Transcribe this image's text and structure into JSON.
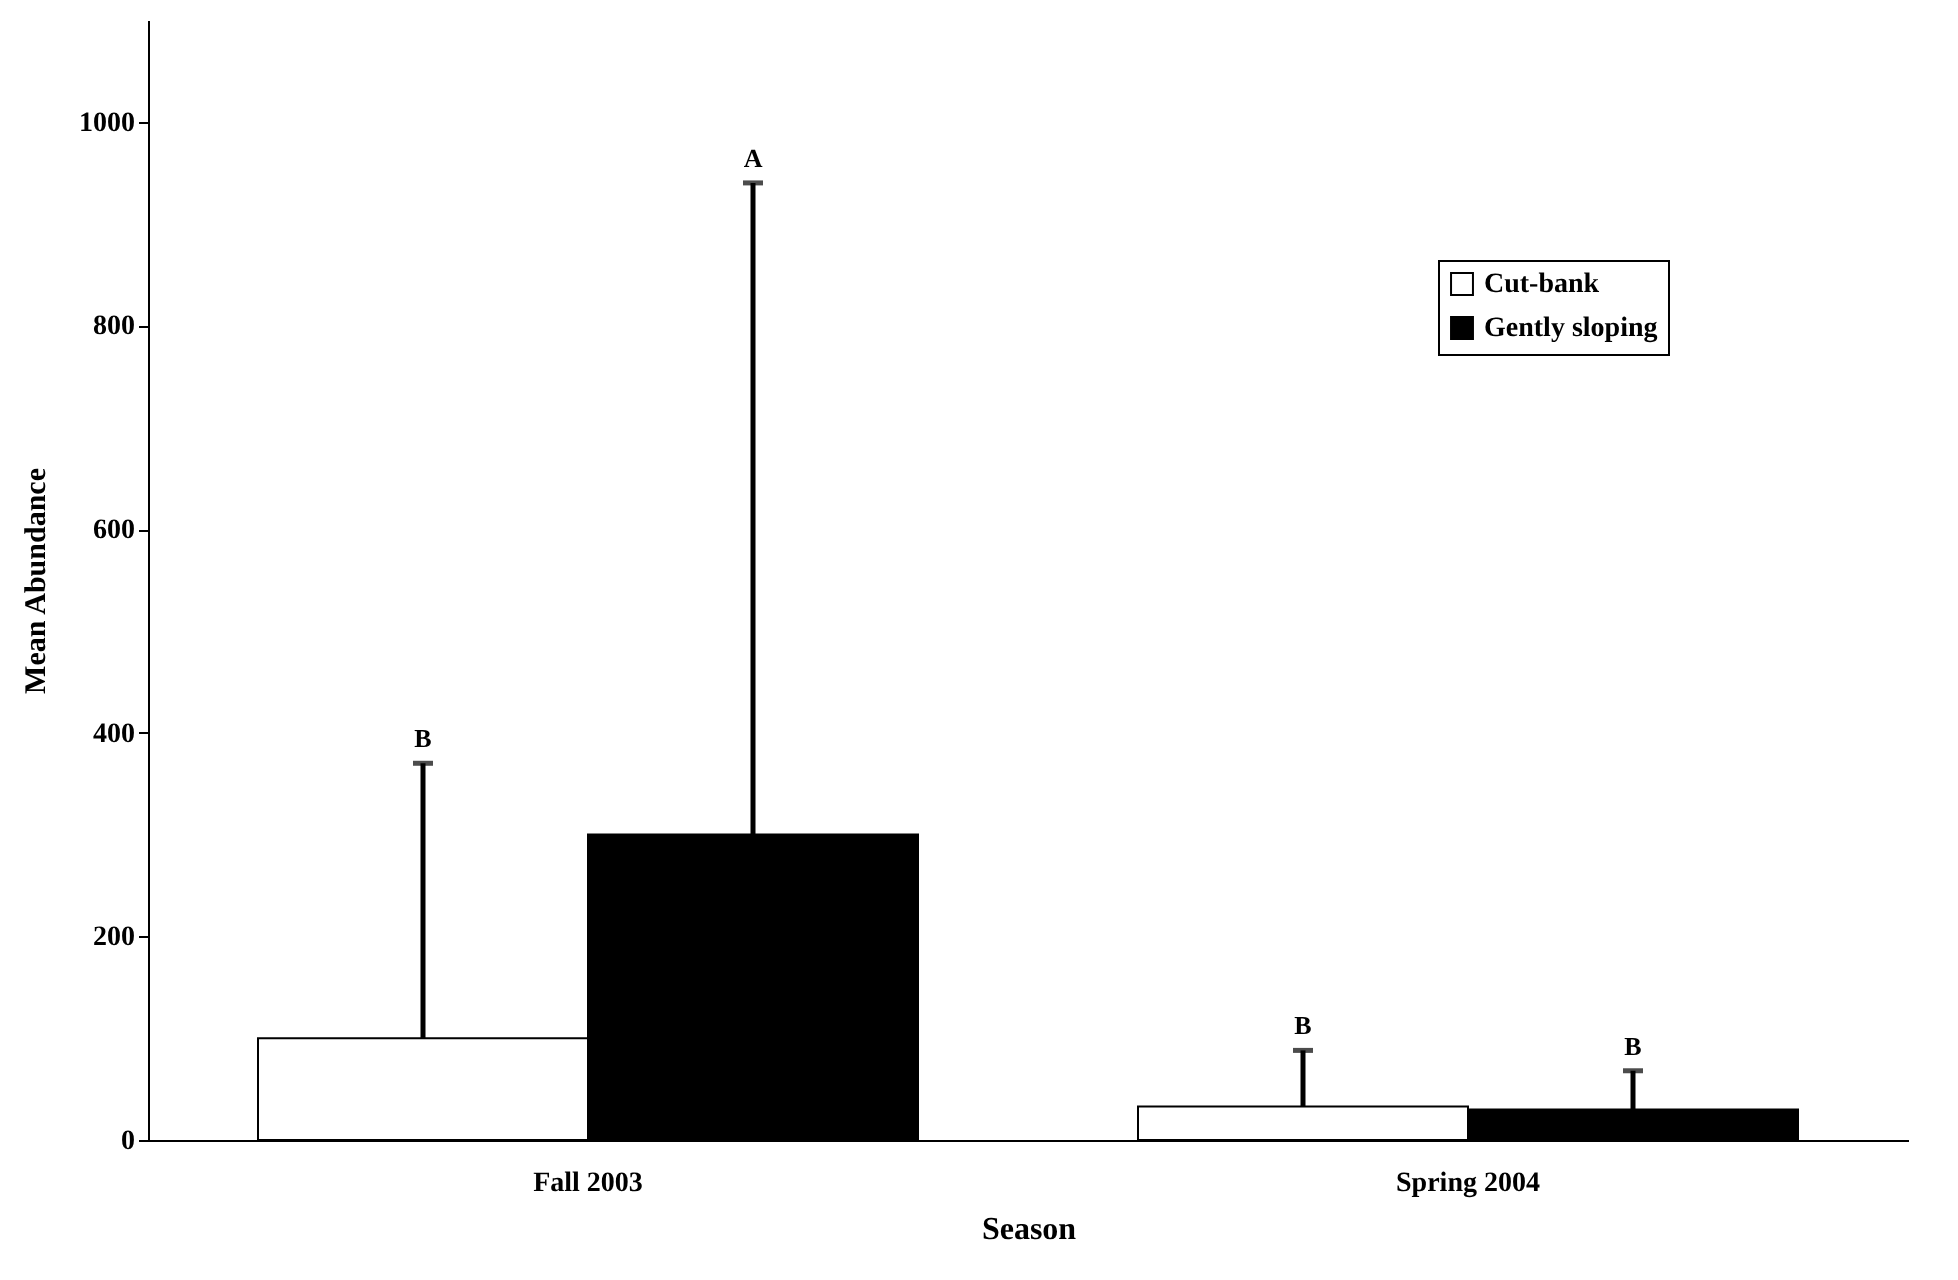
{
  "chart_data": {
    "type": "bar",
    "xlabel": "Season",
    "ylabel": "Mean Abundance",
    "categories": [
      "Fall 2003",
      "Spring 2004"
    ],
    "series": [
      {
        "name": "Cut-bank",
        "color": "#ffffff",
        "values": [
          100,
          33
        ],
        "errors": [
          [
            100,
            370
          ],
          [
            33,
            88
          ]
        ]
      },
      {
        "name": "Gently sloping",
        "color": "#000000",
        "values": [
          300,
          30
        ],
        "errors": [
          [
            300,
            940
          ],
          [
            30,
            68
          ]
        ]
      }
    ],
    "annotations": [
      "B",
      "A",
      "B",
      "B"
    ],
    "ylim": [
      0,
      1100
    ],
    "yticks": [
      0,
      200,
      400,
      600,
      800,
      1000
    ],
    "grid": false,
    "legend": "top right"
  }
}
